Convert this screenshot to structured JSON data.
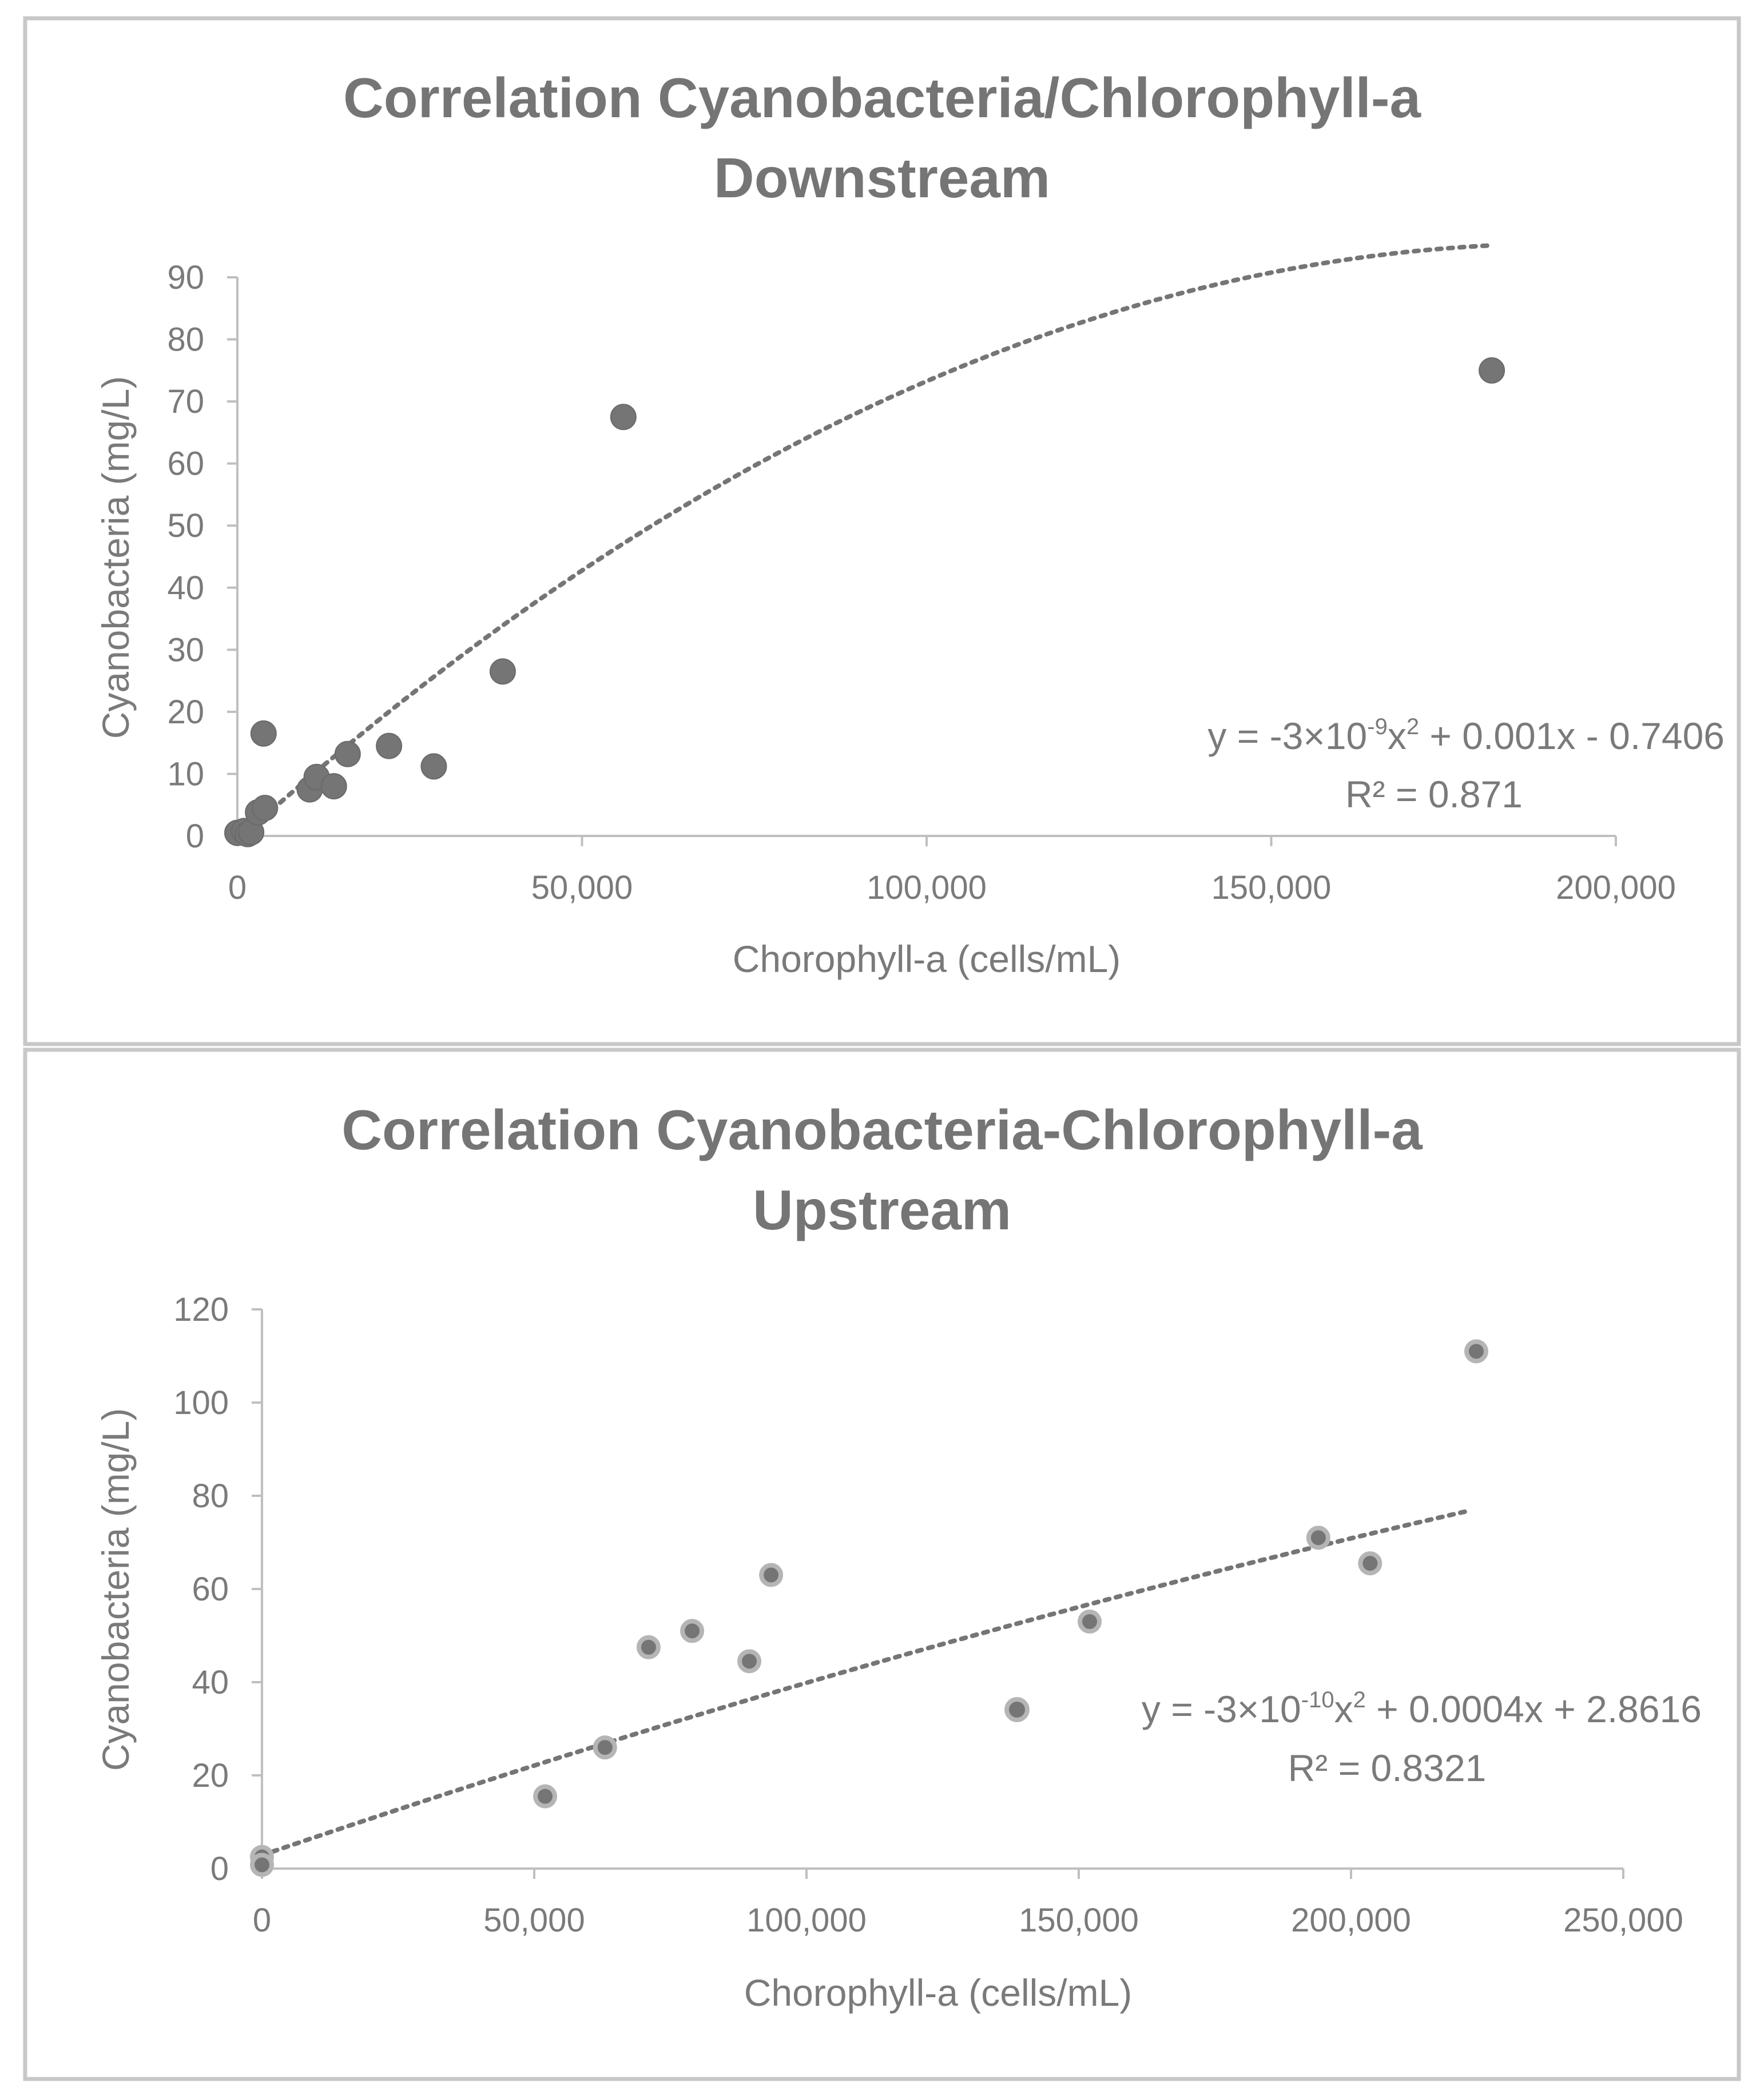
{
  "chart_data": [
    {
      "type": "scatter",
      "title": [
        "Correlation Cyanobacteria/Chlorophyll-a",
        "Downstream"
      ],
      "xlabel": "Chorophyll-a (cells/mL)",
      "ylabel": "Cyanobacteria (mg/L)",
      "xlim": [
        0,
        200000
      ],
      "ylim": [
        0,
        90
      ],
      "xticks": [
        0,
        50000,
        100000,
        150000,
        200000
      ],
      "xtick_labels": [
        "0",
        "50,000",
        "100,000",
        "150,000",
        "200,000"
      ],
      "yticks": [
        0,
        10,
        20,
        30,
        40,
        50,
        60,
        70,
        80,
        90
      ],
      "ytick_labels": [
        "0",
        "10",
        "20",
        "30",
        "40",
        "50",
        "60",
        "70",
        "80",
        "90"
      ],
      "colors": {
        "marker": "#757575",
        "marker_edge": "#6a6a6a",
        "trend": "#757575",
        "axis": "#bfbfbf"
      },
      "x": [
        0,
        1000,
        1500,
        2000,
        3000,
        3800,
        4000,
        10500,
        11500,
        14000,
        16000,
        22000,
        28500,
        38500,
        56000,
        182000
      ],
      "y": [
        0.5,
        0.8,
        0.3,
        0.6,
        3.8,
        16.5,
        4.5,
        7.5,
        9.5,
        8.0,
        13.2,
        14.5,
        11.2,
        26.5,
        67.5,
        75.0
      ],
      "trendline": {
        "type": "polynomial-2",
        "a": -2.6e-09,
        "b": 0.001,
        "c": -0.7406,
        "x_from": 0,
        "x_to": 182000
      },
      "equation": {
        "prefix": "y = -3×10",
        "exp": "-9",
        "mid": "x",
        "sq": "2",
        "suffix": " + 0.001x - 0.7406"
      },
      "r_squared": "R² = 0.871"
    },
    {
      "type": "scatter",
      "title": [
        "Correlation Cyanobacteria-Chlorophyll-a",
        "Upstream"
      ],
      "xlabel": "Chorophyll-a (cells/mL)",
      "ylabel": "Cyanobacteria (mg/L)",
      "xlim": [
        0,
        250000
      ],
      "ylim": [
        0,
        120
      ],
      "xticks": [
        0,
        50000,
        100000,
        150000,
        200000,
        250000
      ],
      "xtick_labels": [
        "0",
        "50,000",
        "100,000",
        "150,000",
        "200,000",
        "250,000"
      ],
      "yticks": [
        0,
        20,
        40,
        60,
        80,
        100,
        120
      ],
      "ytick_labels": [
        "0",
        "20",
        "40",
        "60",
        "80",
        "100",
        "120"
      ],
      "colors": {
        "marker": "#757575",
        "marker_edge": "#b5b5b5",
        "trend": "#757575",
        "axis": "#bfbfbf"
      },
      "x": [
        0,
        0,
        52000,
        63000,
        71000,
        79000,
        89500,
        93500,
        152000,
        194000,
        203500,
        223000
      ],
      "y": [
        2.5,
        0.8,
        15.5,
        26.0,
        47.5,
        51.0,
        44.5,
        63.0,
        53.0,
        71.0,
        65.5,
        111.0
      ],
      "trendline": {
        "type": "polynomial-2",
        "a": -3e-10,
        "b": 0.0004,
        "c": 2.8616,
        "x_from": 0,
        "x_to": 221000
      },
      "equation": {
        "prefix": "y = -3×10",
        "exp": "-10",
        "mid": "x",
        "sq": "2",
        "suffix": " + 0.0004x + 2.8616"
      },
      "r_squared": "R² = 0.8321"
    }
  ]
}
